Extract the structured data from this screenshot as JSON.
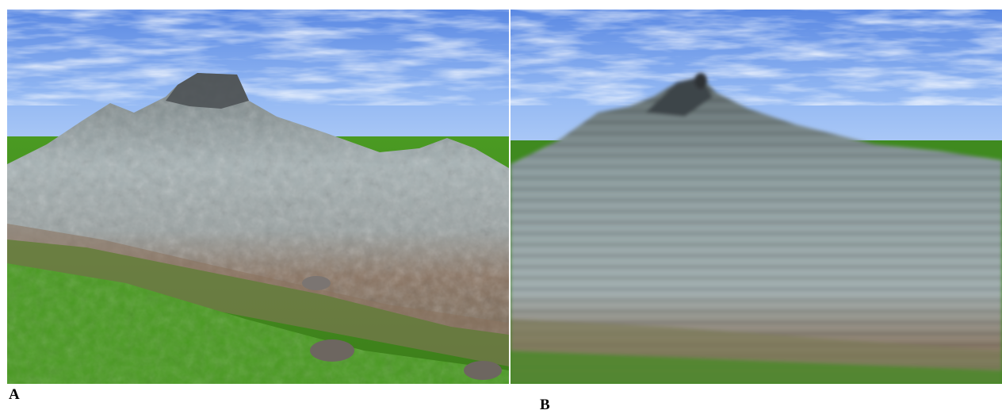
{
  "figure": {
    "panels": [
      {
        "label": "A",
        "description_icon": "rough-terrain-render"
      },
      {
        "label": "B",
        "description_icon": "smooth-terrain-render"
      }
    ]
  },
  "colors": {
    "sky_top": "#5f8fe6",
    "sky_horizon": "#a9c8f6",
    "grass": "#3f8a1f",
    "rock": "#9aa6a8",
    "soil": "#8a735e"
  }
}
